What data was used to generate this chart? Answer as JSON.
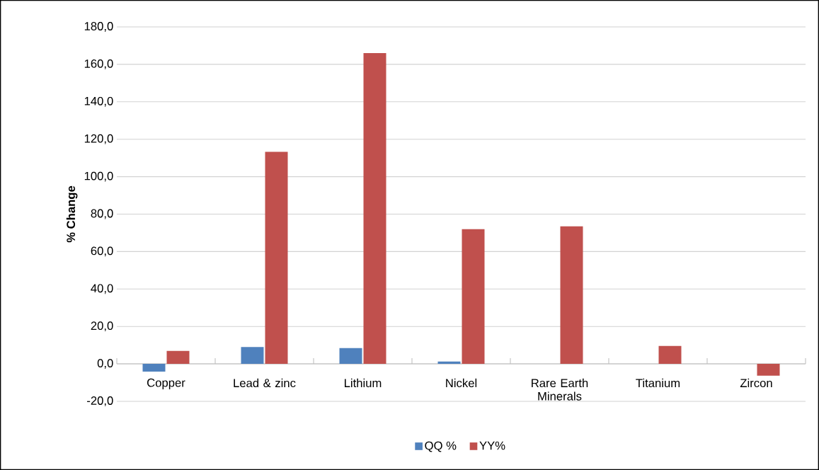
{
  "chart_data": {
    "type": "bar",
    "ylabel": "% Change",
    "categories": [
      "Copper",
      "Lead & zinc",
      "Lithium",
      "Nickel",
      "Rare Earth Minerals",
      "Titanium",
      "Zircon"
    ],
    "series": [
      {
        "name": "QQ %",
        "color": "#4f81bd",
        "values": [
          -4.1,
          9.0,
          8.4,
          1.3,
          0,
          0,
          0
        ]
      },
      {
        "name": "YY%",
        "color": "#c0504d",
        "values": [
          6.9,
          113.3,
          166.0,
          72.0,
          73.5,
          9.6,
          -6.3
        ]
      }
    ],
    "ylim": [
      -20,
      180
    ],
    "yticks": [
      {
        "value": -20,
        "label": "-20,0"
      },
      {
        "value": 0,
        "label": "0,0"
      },
      {
        "value": 20,
        "label": "20,0"
      },
      {
        "value": 40,
        "label": "40,0"
      },
      {
        "value": 60,
        "label": "60,0"
      },
      {
        "value": 80,
        "label": "80,0"
      },
      {
        "value": 100,
        "label": "100,0"
      },
      {
        "value": 120,
        "label": "120,0"
      },
      {
        "value": 140,
        "label": "140,0"
      },
      {
        "value": 160,
        "label": "160,0"
      },
      {
        "value": 180,
        "label": "180,0"
      }
    ],
    "grid": "y",
    "legend": "bottom"
  }
}
